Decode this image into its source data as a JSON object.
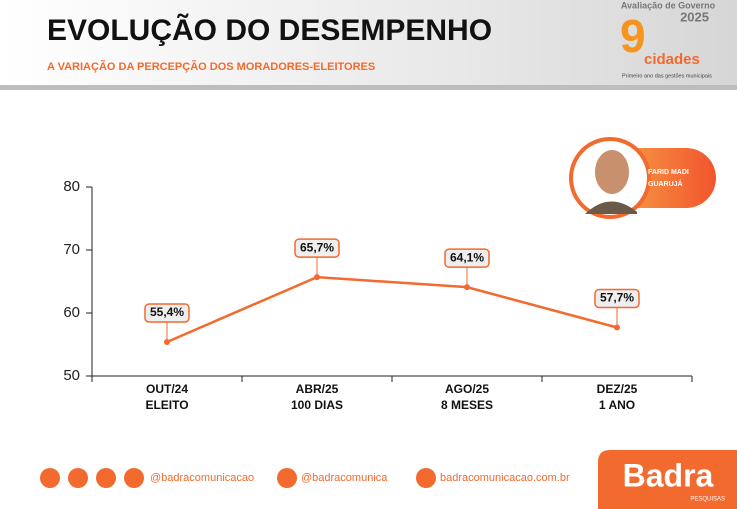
{
  "header": {
    "title": "EVOLUÇÃO DO DESEMPENHO",
    "subtitle": "A VARIAÇÃO DA PERCEPÇÃO DOS MORADORES-ELEITORES"
  },
  "logo": {
    "line1": "Avaliação de Governo",
    "year": "2025",
    "number": "9",
    "word": "cidades",
    "tagline": "Primeiro ano das gestões municipais"
  },
  "badge": {
    "name": "FARID MADI",
    "city": "GUARUJÁ"
  },
  "chart_data": {
    "type": "line",
    "categories": [
      "OUT/24",
      "ABR/25",
      "AGO/25",
      "DEZ/25"
    ],
    "category_sublabels": [
      "ELEITO",
      "100 DIAS",
      "8 MESES",
      "1 ANO"
    ],
    "values": [
      55.4,
      65.7,
      64.1,
      57.7
    ],
    "value_labels": [
      "55,4%",
      "65,7%",
      "64,1%",
      "57,7%"
    ],
    "color": "#f26a2e",
    "ylim": [
      50,
      80
    ],
    "yticks": [
      50,
      60,
      70,
      80
    ]
  },
  "footer": {
    "handle1": "@badracomunicacao",
    "handle2": "@badracomunica",
    "site": "badracomunicacao.com.br",
    "brand": "Badra",
    "brand_sub": "PESQUISAS"
  }
}
